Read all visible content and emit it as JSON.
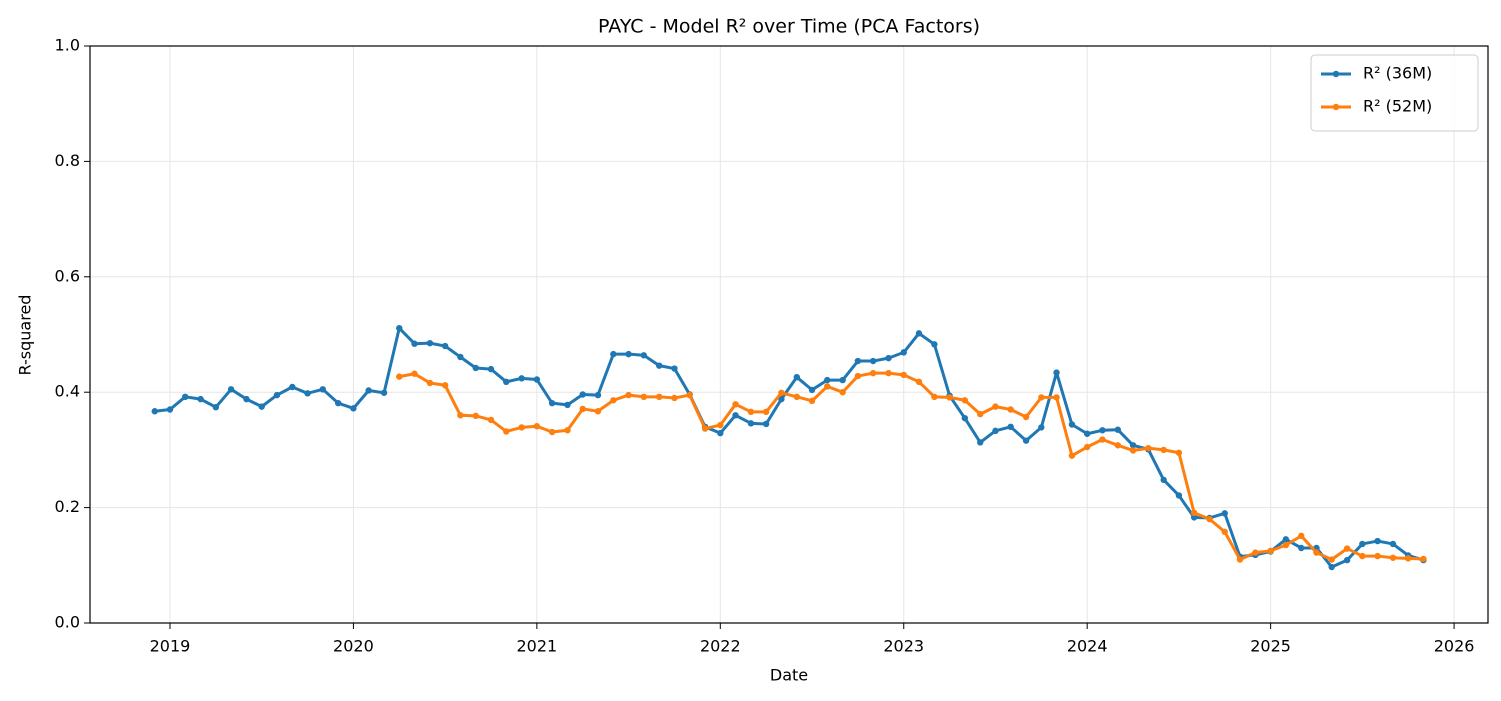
{
  "chart_data": {
    "type": "line",
    "title": "PAYC - Model R² over Time (PCA Factors)",
    "xlabel": "Date",
    "ylabel": "R-squared",
    "x": [
      2018.917,
      2019.0,
      2019.083,
      2019.167,
      2019.25,
      2019.333,
      2019.417,
      2019.5,
      2019.583,
      2019.667,
      2019.75,
      2019.833,
      2019.917,
      2020.0,
      2020.083,
      2020.167,
      2020.25,
      2020.333,
      2020.417,
      2020.5,
      2020.583,
      2020.667,
      2020.75,
      2020.833,
      2020.917,
      2021.0,
      2021.083,
      2021.167,
      2021.25,
      2021.333,
      2021.417,
      2021.5,
      2021.583,
      2021.667,
      2021.75,
      2021.833,
      2021.917,
      2022.0,
      2022.083,
      2022.167,
      2022.25,
      2022.333,
      2022.417,
      2022.5,
      2022.583,
      2022.667,
      2022.75,
      2022.833,
      2022.917,
      2023.0,
      2023.083,
      2023.167,
      2023.25,
      2023.333,
      2023.417,
      2023.5,
      2023.583,
      2023.667,
      2023.75,
      2023.833,
      2023.917,
      2024.0,
      2024.083,
      2024.167,
      2024.25,
      2024.333,
      2024.417,
      2024.5,
      2024.583,
      2024.667,
      2024.75,
      2024.833,
      2024.917,
      2025.0,
      2025.083,
      2025.167,
      2025.25,
      2025.333,
      2025.417,
      2025.5,
      2025.583,
      2025.667,
      2025.75,
      2025.833
    ],
    "series": [
      {
        "name": "R² (36M)",
        "color": "#1f77b4",
        "values": [
          0.367,
          0.37,
          0.392,
          0.388,
          0.374,
          0.405,
          0.388,
          0.375,
          0.395,
          0.409,
          0.398,
          0.405,
          0.381,
          0.372,
          0.403,
          0.399,
          0.511,
          0.484,
          0.485,
          0.48,
          0.461,
          0.442,
          0.44,
          0.418,
          0.424,
          0.422,
          0.381,
          0.378,
          0.396,
          0.395,
          0.466,
          0.466,
          0.464,
          0.446,
          0.441,
          0.396,
          0.34,
          0.329,
          0.36,
          0.346,
          0.345,
          0.388,
          0.426,
          0.404,
          0.421,
          0.421,
          0.454,
          0.454,
          0.459,
          0.469,
          0.502,
          0.483,
          0.394,
          0.355,
          0.313,
          0.333,
          0.34,
          0.316,
          0.339,
          0.434,
          0.344,
          0.328,
          0.334,
          0.335,
          0.308,
          0.301,
          0.248,
          0.221,
          0.183,
          0.182,
          0.19,
          0.115,
          0.118,
          0.124,
          0.145,
          0.13,
          0.13,
          0.097,
          0.109,
          0.137,
          0.142,
          0.137,
          0.117,
          0.109
        ]
      },
      {
        "name": "R² (52M)",
        "color": "#ff7f0e",
        "values": [
          null,
          null,
          null,
          null,
          null,
          null,
          null,
          null,
          null,
          null,
          null,
          null,
          null,
          null,
          null,
          null,
          0.427,
          0.432,
          0.416,
          0.412,
          0.36,
          0.359,
          0.352,
          0.332,
          0.339,
          0.341,
          0.331,
          0.334,
          0.371,
          0.367,
          0.386,
          0.395,
          0.392,
          0.392,
          0.39,
          0.395,
          0.337,
          0.343,
          0.379,
          0.366,
          0.366,
          0.399,
          0.392,
          0.385,
          0.41,
          0.4,
          0.428,
          0.433,
          0.433,
          0.43,
          0.418,
          0.392,
          0.391,
          0.386,
          0.362,
          0.375,
          0.37,
          0.357,
          0.391,
          0.391,
          0.29,
          0.305,
          0.318,
          0.308,
          0.299,
          0.303,
          0.3,
          0.295,
          0.191,
          0.18,
          0.158,
          0.11,
          0.122,
          0.125,
          0.135,
          0.151,
          0.122,
          0.11,
          0.129,
          0.116,
          0.116,
          0.113,
          0.112,
          0.111
        ]
      }
    ],
    "xlim": [
      2018.564,
      2026.185
    ],
    "xticks": [
      2019,
      2020,
      2021,
      2022,
      2023,
      2024,
      2025,
      2026
    ],
    "ylim": [
      0,
      1
    ],
    "yticks": [
      {
        "value": 0,
        "label": "0.0"
      },
      0.2,
      0.4,
      0.6,
      0.8,
      {
        "value": 1,
        "label": "1.0"
      }
    ],
    "grid": true,
    "legend": "upper right"
  }
}
